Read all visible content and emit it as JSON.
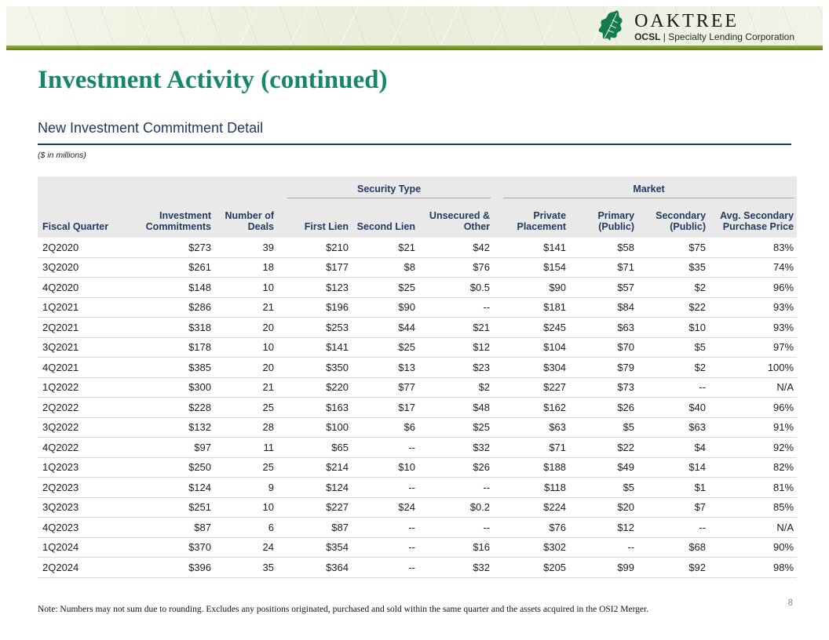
{
  "brand": {
    "name": "OAKTREE",
    "ticker": "OCSL",
    "descriptor": "| Specialty Lending Corporation",
    "colors": {
      "leaf_green": "#157a50",
      "title_green": "#178769",
      "navy": "#1f3864",
      "olive_stripe": "#7d9a2c",
      "banner_bg": "#edf1e1",
      "header_band_gray": "#e9e9e9"
    }
  },
  "slide": {
    "title": "Investment Activity (continued)",
    "subtitle": "New Investment Commitment Detail",
    "units_note": "($ in millions)",
    "footnote": "Note: Numbers may not sum due to rounding.  Excludes any positions originated, purchased and sold within the same quarter and the assets acquired in the OSI2 Merger.",
    "page_number": "8"
  },
  "table": {
    "group_headers": [
      {
        "label": "Security Type",
        "colspan": 3
      },
      {
        "label": "Market",
        "colspan": 4
      }
    ],
    "columns": [
      "Fiscal Quarter",
      "Investment Commitments",
      "Number of Deals",
      "First Lien",
      "Second Lien",
      "Unsecured & Other",
      "Private Placement",
      "Primary (Public)",
      "Secondary (Public)",
      "Avg. Secondary Purchase Price"
    ],
    "rows": [
      [
        "2Q2020",
        "$273",
        "39",
        "$210",
        "$21",
        "$42",
        "$141",
        "$58",
        "$75",
        "83%"
      ],
      [
        "3Q2020",
        "$261",
        "18",
        "$177",
        "$8",
        "$76",
        "$154",
        "$71",
        "$35",
        "74%"
      ],
      [
        "4Q2020",
        "$148",
        "10",
        "$123",
        "$25",
        "$0.5",
        "$90",
        "$57",
        "$2",
        "96%"
      ],
      [
        "1Q2021",
        "$286",
        "21",
        "$196",
        "$90",
        "--",
        "$181",
        "$84",
        "$22",
        "93%"
      ],
      [
        "2Q2021",
        "$318",
        "20",
        "$253",
        "$44",
        "$21",
        "$245",
        "$63",
        "$10",
        "93%"
      ],
      [
        "3Q2021",
        "$178",
        "10",
        "$141",
        "$25",
        "$12",
        "$104",
        "$70",
        "$5",
        "97%"
      ],
      [
        "4Q2021",
        "$385",
        "20",
        "$350",
        "$13",
        "$23",
        "$304",
        "$79",
        "$2",
        "100%"
      ],
      [
        "1Q2022",
        "$300",
        "21",
        "$220",
        "$77",
        "$2",
        "$227",
        "$73",
        "--",
        "N/A"
      ],
      [
        "2Q2022",
        "$228",
        "25",
        "$163",
        "$17",
        "$48",
        "$162",
        "$26",
        "$40",
        "96%"
      ],
      [
        "3Q2022",
        "$132",
        "28",
        "$100",
        "$6",
        "$25",
        "$63",
        "$5",
        "$63",
        "91%"
      ],
      [
        "4Q2022",
        "$97",
        "11",
        "$65",
        "--",
        "$32",
        "$71",
        "$22",
        "$4",
        "92%"
      ],
      [
        "1Q2023",
        "$250",
        "25",
        "$214",
        "$10",
        "$26",
        "$188",
        "$49",
        "$14",
        "82%"
      ],
      [
        "2Q2023",
        "$124",
        "9",
        "$124",
        "--",
        "--",
        "$118",
        "$5",
        "$1",
        "81%"
      ],
      [
        "3Q2023",
        "$251",
        "10",
        "$227",
        "$24",
        "$0.2",
        "$224",
        "$20",
        "$7",
        "85%"
      ],
      [
        "4Q2023",
        "$87",
        "6",
        "$87",
        "--",
        "--",
        "$76",
        "$12",
        "--",
        "N/A"
      ],
      [
        "1Q2024",
        "$370",
        "24",
        "$354",
        "--",
        "$16",
        "$302",
        "--",
        "$68",
        "90%"
      ],
      [
        "2Q2024",
        "$396",
        "35",
        "$364",
        "--",
        "$32",
        "$205",
        "$99",
        "$92",
        "98%"
      ]
    ]
  }
}
